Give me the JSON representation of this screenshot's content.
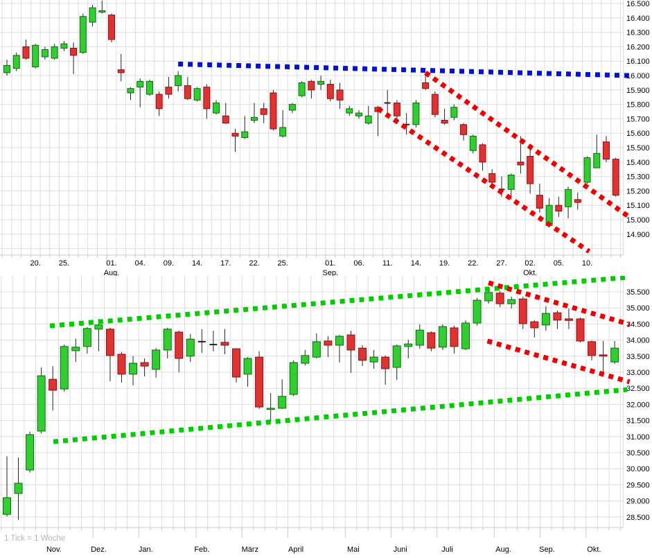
{
  "page": {
    "background": "#ffffff"
  },
  "colors": {
    "grid": "#dcdce2",
    "axis_text": "#000000",
    "candle_up_fill": "#33cc33",
    "candle_up_border": "#0b6b0b",
    "candle_down_fill": "#dd3333",
    "candle_down_border": "#8b1111",
    "doji_tick": "#222222",
    "wick": "#222222",
    "trend_blue": "#0011dd",
    "trend_red": "#ee0000",
    "trend_green": "#00cc00",
    "note_gray": "#b4b4b4"
  },
  "chart_data": [
    {
      "id": "daily",
      "type": "candlestick",
      "title": "",
      "note": "",
      "legend": "none",
      "grid": true,
      "y_axis": {
        "side": "right",
        "min": 14.9,
        "max": 16.5,
        "step": 0.1,
        "values": [
          16.5,
          16.4,
          16.3,
          16.2,
          16.1,
          16.0,
          15.9,
          15.8,
          15.7,
          15.6,
          15.5,
          15.4,
          15.3,
          15.2,
          15.1,
          15.0,
          14.9
        ],
        "labels": [
          "16.500",
          "16.400",
          "16.300",
          "16.200",
          "16.100",
          "16.000",
          "15.900",
          "15.800",
          "15.700",
          "15.600",
          "15.500",
          "15.400",
          "15.300",
          "15.200",
          "15.100",
          "15.000",
          "14.900"
        ]
      },
      "x_axis": {
        "ticks": [
          {
            "label": "20.",
            "index": 3
          },
          {
            "label": "25.",
            "index": 6
          },
          {
            "label": "01.",
            "index": 11,
            "month": "Aug."
          },
          {
            "label": "04.",
            "index": 14
          },
          {
            "label": "09.",
            "index": 17
          },
          {
            "label": "14.",
            "index": 20
          },
          {
            "label": "17.",
            "index": 23
          },
          {
            "label": "22.",
            "index": 26
          },
          {
            "label": "25.",
            "index": 29
          },
          {
            "label": "01.",
            "index": 34,
            "month": "Sep."
          },
          {
            "label": "06.",
            "index": 37
          },
          {
            "label": "11.",
            "index": 40
          },
          {
            "label": "14.",
            "index": 43
          },
          {
            "label": "19.",
            "index": 46
          },
          {
            "label": "22.",
            "index": 49
          },
          {
            "label": "27.",
            "index": 52
          },
          {
            "label": "02.",
            "index": 55,
            "month": "Okt."
          },
          {
            "label": "05.",
            "index": 58
          },
          {
            "label": "10.",
            "index": 61
          }
        ],
        "month_boundaries": [
          10.5,
          33.5,
          54.5
        ]
      },
      "candles_format": [
        "open",
        "high",
        "low",
        "close"
      ],
      "candles": [
        [
          16.02,
          16.11,
          16.0,
          16.07
        ],
        [
          16.05,
          16.16,
          16.03,
          16.14
        ],
        [
          16.2,
          16.25,
          16.11,
          16.12
        ],
        [
          16.06,
          16.22,
          16.05,
          16.21
        ],
        [
          16.13,
          16.2,
          16.11,
          16.18
        ],
        [
          16.12,
          16.22,
          16.11,
          16.2
        ],
        [
          16.19,
          16.24,
          16.17,
          16.22
        ],
        [
          16.19,
          16.23,
          16.01,
          16.14
        ],
        [
          16.16,
          16.43,
          16.15,
          16.41
        ],
        [
          16.37,
          16.49,
          16.34,
          16.47
        ],
        [
          16.44,
          16.52,
          16.43,
          16.45
        ],
        [
          16.42,
          16.43,
          16.23,
          16.25
        ],
        [
          16.04,
          16.15,
          15.96,
          16.02
        ],
        [
          15.88,
          15.92,
          15.83,
          15.91
        ],
        [
          15.92,
          15.98,
          15.78,
          15.96
        ],
        [
          15.87,
          15.97,
          15.86,
          15.96
        ],
        [
          15.87,
          15.89,
          15.72,
          15.77
        ],
        [
          15.92,
          15.99,
          15.84,
          15.87
        ],
        [
          15.93,
          16.03,
          15.89,
          16.0
        ],
        [
          15.93,
          15.99,
          15.83,
          15.84
        ],
        [
          15.83,
          15.92,
          15.82,
          15.91
        ],
        [
          15.92,
          15.94,
          15.7,
          15.77
        ],
        [
          15.74,
          15.83,
          15.73,
          15.81
        ],
        [
          15.72,
          15.81,
          15.665,
          15.67
        ],
        [
          15.6,
          15.63,
          15.47,
          15.58
        ],
        [
          15.57,
          15.72,
          15.56,
          15.61
        ],
        [
          15.69,
          15.81,
          15.67,
          15.71
        ],
        [
          15.77,
          15.81,
          15.67,
          15.73
        ],
        [
          15.88,
          15.9,
          15.62,
          15.63
        ],
        [
          15.58,
          15.76,
          15.57,
          15.64
        ],
        [
          15.76,
          15.81,
          15.74,
          15.8
        ],
        [
          15.86,
          15.96,
          15.85,
          15.95
        ],
        [
          15.96,
          15.97,
          15.84,
          15.9
        ],
        [
          15.94,
          16.0,
          15.9,
          15.96
        ],
        [
          15.94,
          15.97,
          15.82,
          15.84
        ],
        [
          15.9,
          15.95,
          15.77,
          15.83
        ],
        [
          15.74,
          15.79,
          15.72,
          15.77
        ],
        [
          15.72,
          15.76,
          15.7,
          15.74
        ],
        [
          15.67,
          15.79,
          15.66,
          15.72
        ],
        [
          15.78,
          15.79,
          15.58,
          15.75
        ],
        [
          15.81,
          15.9,
          15.73,
          15.81
        ],
        [
          15.81,
          15.83,
          15.7,
          15.72
        ],
        [
          15.66,
          15.74,
          15.59,
          15.66
        ],
        [
          15.66,
          15.83,
          15.64,
          15.81
        ],
        [
          15.95,
          16.0,
          15.9,
          15.91
        ],
        [
          15.87,
          15.89,
          15.71,
          15.73
        ],
        [
          15.69,
          15.77,
          15.66,
          15.67
        ],
        [
          15.71,
          15.8,
          15.69,
          15.78
        ],
        [
          15.66,
          15.67,
          15.55,
          15.59
        ],
        [
          15.48,
          15.59,
          15.46,
          15.58
        ],
        [
          15.52,
          15.53,
          15.34,
          15.4
        ],
        [
          15.32,
          15.35,
          15.25,
          15.26
        ],
        [
          15.21,
          15.3,
          15.16,
          15.21
        ],
        [
          15.21,
          15.32,
          15.14,
          15.31
        ],
        [
          15.4,
          15.58,
          15.32,
          15.38
        ],
        [
          15.44,
          15.5,
          15.18,
          15.25
        ],
        [
          15.17,
          15.25,
          15.05,
          15.08
        ],
        [
          14.96,
          15.15,
          14.95,
          15.1
        ],
        [
          15.1,
          15.16,
          15.02,
          15.06
        ],
        [
          15.09,
          15.23,
          15.01,
          15.21
        ],
        [
          15.14,
          15.19,
          15.07,
          15.12
        ],
        [
          15.26,
          15.44,
          15.25,
          15.43
        ],
        [
          15.36,
          15.59,
          15.36,
          15.46
        ],
        [
          15.54,
          15.58,
          15.4,
          15.42
        ],
        [
          15.42,
          15.43,
          15.16,
          15.17
        ]
      ],
      "trend_lines": [
        {
          "name": "resistance-line",
          "color": "#0011dd",
          "points": [
            [
              18.0,
              16.08
            ],
            [
              65.4,
              16.0
            ]
          ]
        },
        {
          "name": "down-channel-upper",
          "color": "#ee0000",
          "points": [
            [
              44.0,
              16.02
            ],
            [
              65.4,
              15.02
            ]
          ]
        },
        {
          "name": "down-channel-lower",
          "color": "#ee0000",
          "points": [
            [
              39.0,
              15.77
            ],
            [
              61.2,
              14.78
            ]
          ]
        }
      ]
    },
    {
      "id": "weekly",
      "type": "candlestick",
      "title": "",
      "note": "1 Tick = 1 Woche",
      "legend": "none",
      "grid": true,
      "y_axis": {
        "side": "right",
        "min": 28.5,
        "max": 35.5,
        "step": 0.5,
        "values": [
          35.5,
          35.0,
          34.5,
          34.0,
          33.5,
          33.0,
          32.5,
          32.0,
          31.5,
          31.0,
          30.5,
          30.0,
          29.5,
          29.0,
          28.5
        ],
        "labels": [
          "35.500",
          "35.000",
          "34.500",
          "34.000",
          "33.500",
          "33.000",
          "32.500",
          "32.000",
          "31.500",
          "31.000",
          "30.500",
          "30.000",
          "29.500",
          "29.000",
          "28.500"
        ]
      },
      "x_axis": {
        "ticks": [
          {
            "label": "Nov.",
            "index": 4.1
          },
          {
            "label": "Dez.",
            "index": 8.0
          },
          {
            "label": "Jan.",
            "index": 12.1
          },
          {
            "label": "Feb.",
            "index": 17.0
          },
          {
            "label": "März",
            "index": 21.2
          },
          {
            "label": "April",
            "index": 25.2
          },
          {
            "label": "Mai",
            "index": 30.2
          },
          {
            "label": "Juni",
            "index": 34.3
          },
          {
            "label": "Juli",
            "index": 38.4
          },
          {
            "label": "Aug.",
            "index": 43.3
          },
          {
            "label": "Sep.",
            "index": 47.1
          },
          {
            "label": "Okt.",
            "index": 51.2
          }
        ],
        "month_boundaries": [
          3.5,
          7.5,
          11.5,
          16.5,
          20.5,
          24.5,
          29.5,
          33.5,
          37.5,
          42.5,
          46.5,
          50.5
        ]
      },
      "candles_format": [
        "open",
        "high",
        "low",
        "close"
      ],
      "candles": [
        [
          28.58,
          30.39,
          28.52,
          29.1
        ],
        [
          29.23,
          30.35,
          28.41,
          29.55
        ],
        [
          29.96,
          31.15,
          29.88,
          31.06
        ],
        [
          31.17,
          33.15,
          31.1,
          32.89
        ],
        [
          32.78,
          33.19,
          31.81,
          32.44
        ],
        [
          32.48,
          33.86,
          32.4,
          33.8
        ],
        [
          33.67,
          34.04,
          33.32,
          33.78
        ],
        [
          33.8,
          34.4,
          33.58,
          34.36
        ],
        [
          34.34,
          34.66,
          33.65,
          34.47
        ],
        [
          34.34,
          34.38,
          32.72,
          33.52
        ],
        [
          33.56,
          33.63,
          32.68,
          32.94
        ],
        [
          32.94,
          33.5,
          32.59,
          33.28
        ],
        [
          33.3,
          33.43,
          32.87,
          33.19
        ],
        [
          33.09,
          33.75,
          32.83,
          33.69
        ],
        [
          33.69,
          34.38,
          33.43,
          34.34
        ],
        [
          34.25,
          34.29,
          33.0,
          33.43
        ],
        [
          33.5,
          34.19,
          33.32,
          34.03
        ],
        [
          33.95,
          34.34,
          33.6,
          33.95
        ],
        [
          33.86,
          34.29,
          33.65,
          33.86
        ],
        [
          33.93,
          34.34,
          33.56,
          33.84
        ],
        [
          33.73,
          33.75,
          32.68,
          32.85
        ],
        [
          32.94,
          33.47,
          32.55,
          33.43
        ],
        [
          33.47,
          33.65,
          31.86,
          31.92
        ],
        [
          31.85,
          32.35,
          31.47,
          31.88
        ],
        [
          31.88,
          32.78,
          31.86,
          32.25
        ],
        [
          32.31,
          33.37,
          32.25,
          33.3
        ],
        [
          33.28,
          33.69,
          33.21,
          33.52
        ],
        [
          33.47,
          34.21,
          33.43,
          33.95
        ],
        [
          33.97,
          34.12,
          33.47,
          33.84
        ],
        [
          33.84,
          34.16,
          33.3,
          34.12
        ],
        [
          34.16,
          34.29,
          32.98,
          33.69
        ],
        [
          33.75,
          33.84,
          33.19,
          33.37
        ],
        [
          33.32,
          33.69,
          33.11,
          33.47
        ],
        [
          33.47,
          33.52,
          32.61,
          33.11
        ],
        [
          33.15,
          33.86,
          32.76,
          33.82
        ],
        [
          33.8,
          34.01,
          33.43,
          33.88
        ],
        [
          33.84,
          34.49,
          33.73,
          34.31
        ],
        [
          34.23,
          34.27,
          33.65,
          33.75
        ],
        [
          33.78,
          34.49,
          33.69,
          34.42
        ],
        [
          34.38,
          34.45,
          33.58,
          33.8
        ],
        [
          33.73,
          34.62,
          33.69,
          34.53
        ],
        [
          34.53,
          35.31,
          34.45,
          35.24
        ],
        [
          35.22,
          35.63,
          35.13,
          35.48
        ],
        [
          35.46,
          35.52,
          35.02,
          35.13
        ],
        [
          35.13,
          35.35,
          34.98,
          35.26
        ],
        [
          35.28,
          35.35,
          34.34,
          34.51
        ],
        [
          34.57,
          34.62,
          34.08,
          34.38
        ],
        [
          34.47,
          35.05,
          34.29,
          34.83
        ],
        [
          34.85,
          34.92,
          34.34,
          34.62
        ],
        [
          34.66,
          34.98,
          34.34,
          34.61
        ],
        [
          34.66,
          34.7,
          33.93,
          33.97
        ],
        [
          33.95,
          33.99,
          33.37,
          33.52
        ],
        [
          33.54,
          33.97,
          32.98,
          33.5
        ],
        [
          33.32,
          33.97,
          33.26,
          33.75
        ]
      ],
      "trend_lines": [
        {
          "name": "up-channel-upper",
          "color": "#00cc00",
          "points": [
            [
              3.75,
              34.44
            ],
            [
              54.1,
              35.95
            ]
          ]
        },
        {
          "name": "up-channel-lower",
          "color": "#00cc00",
          "points": [
            [
              4.05,
              30.84
            ],
            [
              54.1,
              32.46
            ]
          ]
        },
        {
          "name": "down-channel-upper",
          "color": "#ee0000",
          "points": [
            [
              42.0,
              35.78
            ],
            [
              54.3,
              34.49
            ]
          ]
        },
        {
          "name": "down-channel-lower",
          "color": "#ee0000",
          "points": [
            [
              41.9,
              33.97
            ],
            [
              54.3,
              32.7
            ]
          ]
        }
      ]
    }
  ]
}
